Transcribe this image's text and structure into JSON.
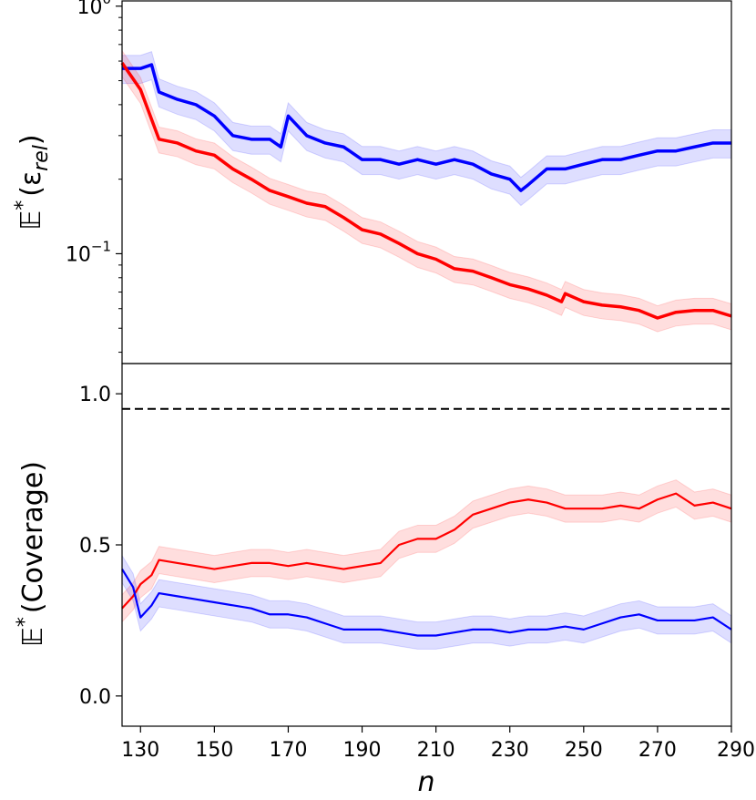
{
  "chart_data": [
    {
      "type": "line",
      "panel": "top",
      "ylabel_prefix": "𝔼",
      "ylabel_sup": "*",
      "ylabel_main": "(ε",
      "ylabel_sub": "rel",
      "ylabel_close": ")",
      "yscale": "log",
      "ylim": [
        0.036,
        1.05
      ],
      "xlim": [
        125,
        290
      ],
      "ytick_labels": [
        {
          "base": "10",
          "exp": "0",
          "value": 1.0
        },
        {
          "base": "10",
          "exp": "−1",
          "value": 0.1
        }
      ],
      "series": [
        {
          "name": "blue",
          "color": "#0000ff",
          "x": [
            125,
            130,
            133,
            135,
            140,
            145,
            150,
            155,
            160,
            165,
            168,
            170,
            175,
            180,
            185,
            190,
            195,
            200,
            205,
            210,
            215,
            220,
            225,
            230,
            233,
            235,
            240,
            245,
            250,
            255,
            260,
            265,
            270,
            275,
            280,
            285,
            290
          ],
          "y": [
            0.56,
            0.56,
            0.58,
            0.45,
            0.42,
            0.4,
            0.36,
            0.3,
            0.29,
            0.29,
            0.27,
            0.36,
            0.3,
            0.28,
            0.27,
            0.24,
            0.24,
            0.23,
            0.24,
            0.23,
            0.24,
            0.23,
            0.21,
            0.2,
            0.18,
            0.19,
            0.22,
            0.22,
            0.23,
            0.24,
            0.24,
            0.25,
            0.26,
            0.26,
            0.27,
            0.28,
            0.28
          ],
          "band": 0.13
        },
        {
          "name": "red",
          "color": "#ff0000",
          "x": [
            125,
            130,
            135,
            140,
            145,
            150,
            155,
            160,
            165,
            170,
            175,
            180,
            185,
            190,
            195,
            200,
            205,
            210,
            215,
            220,
            225,
            230,
            235,
            240,
            244,
            245,
            250,
            255,
            260,
            265,
            270,
            275,
            280,
            285,
            290
          ],
          "y": [
            0.59,
            0.46,
            0.29,
            0.28,
            0.26,
            0.25,
            0.22,
            0.2,
            0.18,
            0.17,
            0.16,
            0.155,
            0.14,
            0.125,
            0.12,
            0.11,
            0.1,
            0.095,
            0.087,
            0.085,
            0.08,
            0.075,
            0.072,
            0.068,
            0.064,
            0.069,
            0.064,
            0.062,
            0.061,
            0.059,
            0.055,
            0.058,
            0.059,
            0.059,
            0.056
          ],
          "band": 0.12
        }
      ]
    },
    {
      "type": "line",
      "panel": "bottom",
      "ylabel_prefix": "𝔼",
      "ylabel_sup": "*",
      "ylabel_main": "(Coverage)",
      "ylim": [
        -0.1,
        1.1
      ],
      "xlim": [
        125,
        290
      ],
      "yticks": [
        0.0,
        0.5,
        1.0
      ],
      "ytick_labels": [
        "0.0",
        "0.5",
        "1.0"
      ],
      "reference_line": {
        "y": 0.95,
        "style": "dashed",
        "color": "#000000"
      },
      "series": [
        {
          "name": "red",
          "color": "#ff0000",
          "x": [
            125,
            128,
            130,
            133,
            135,
            140,
            145,
            150,
            155,
            160,
            165,
            170,
            175,
            180,
            185,
            190,
            195,
            200,
            205,
            210,
            215,
            220,
            225,
            230,
            235,
            240,
            245,
            250,
            255,
            260,
            265,
            270,
            275,
            280,
            285,
            290
          ],
          "y": [
            0.29,
            0.33,
            0.37,
            0.4,
            0.45,
            0.44,
            0.43,
            0.42,
            0.43,
            0.44,
            0.44,
            0.43,
            0.44,
            0.43,
            0.42,
            0.43,
            0.44,
            0.5,
            0.52,
            0.52,
            0.55,
            0.6,
            0.62,
            0.64,
            0.65,
            0.64,
            0.62,
            0.62,
            0.62,
            0.63,
            0.62,
            0.65,
            0.67,
            0.63,
            0.64,
            0.62
          ],
          "band": 0.045
        },
        {
          "name": "blue",
          "color": "#0000ff",
          "x": [
            125,
            128,
            130,
            133,
            135,
            140,
            145,
            150,
            155,
            160,
            165,
            170,
            175,
            180,
            185,
            190,
            195,
            200,
            205,
            210,
            215,
            220,
            225,
            230,
            235,
            240,
            245,
            250,
            255,
            260,
            265,
            270,
            275,
            280,
            285,
            290
          ],
          "y": [
            0.42,
            0.36,
            0.26,
            0.3,
            0.34,
            0.33,
            0.32,
            0.31,
            0.3,
            0.29,
            0.27,
            0.27,
            0.26,
            0.24,
            0.22,
            0.22,
            0.22,
            0.21,
            0.2,
            0.2,
            0.21,
            0.22,
            0.22,
            0.21,
            0.22,
            0.22,
            0.23,
            0.22,
            0.24,
            0.26,
            0.27,
            0.25,
            0.25,
            0.25,
            0.26,
            0.22
          ],
          "band": 0.045
        }
      ]
    }
  ],
  "shared_x_axis": {
    "label": "n",
    "ticks": [
      130,
      150,
      170,
      190,
      210,
      230,
      250,
      270,
      290
    ],
    "tick_labels": [
      "130",
      "150",
      "170",
      "190",
      "210",
      "230",
      "250",
      "270",
      "290"
    ]
  }
}
